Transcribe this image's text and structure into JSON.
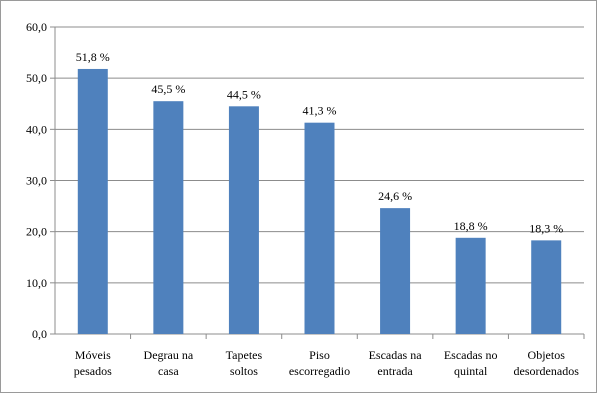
{
  "chart_data": {
    "type": "bar",
    "categories": [
      [
        "Móveis",
        "pesados"
      ],
      [
        "Degrau na",
        "casa"
      ],
      [
        "Tapetes",
        "soltos"
      ],
      [
        "Piso",
        "escorregadio"
      ],
      [
        "Escadas na",
        "entrada"
      ],
      [
        "Escadas no",
        "quintal"
      ],
      [
        "Objetos",
        "desordenados"
      ]
    ],
    "values": [
      51.8,
      45.5,
      44.5,
      41.3,
      24.6,
      18.8,
      18.3
    ],
    "data_labels": [
      "51,8 %",
      "45,5 %",
      "44,5 %",
      "41,3 %",
      "24,6 %",
      "18,8 %",
      "18,3 %"
    ],
    "y_ticks": [
      "0,0",
      "10,0",
      "20,0",
      "30,0",
      "40,0",
      "50,0",
      "60,0"
    ],
    "ylim": [
      0,
      60
    ],
    "grid": true,
    "bar_color": "#4f81bd",
    "grid_color": "#8c8c8c",
    "title": "",
    "xlabel": "",
    "ylabel": ""
  }
}
